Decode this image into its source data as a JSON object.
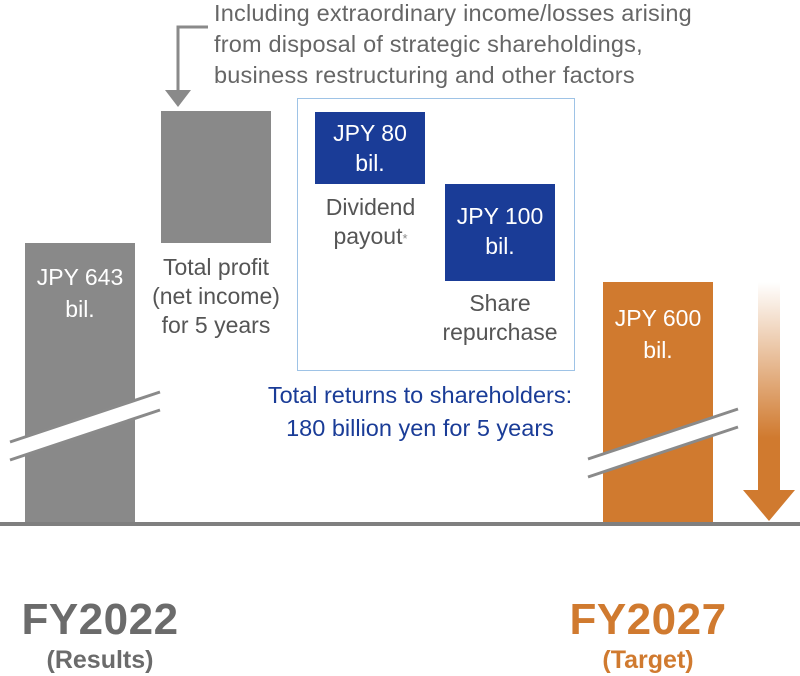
{
  "note": {
    "line1": "Including extraordinary income/losses arising",
    "line2": "from disposal of strategic shareholdings,",
    "line3": "business restructuring and other factors"
  },
  "fy2022_bar": {
    "line1": "JPY 643",
    "line2": "bil."
  },
  "profit_label": {
    "line1": "Total profit",
    "line2": "(net income)",
    "line3": "for 5 years"
  },
  "dividend": {
    "amount_line1": "JPY 80",
    "amount_line2": "bil.",
    "label_line1": "Dividend",
    "label_line2": "payout",
    "footnote_mark": "*"
  },
  "repurchase": {
    "amount_line1": "JPY 100",
    "amount_line2": "bil.",
    "label_line1": "Share",
    "label_line2": "repurchase"
  },
  "total_returns": {
    "line1": "Total returns to shareholders:",
    "line2": "180 billion yen for 5 years"
  },
  "fy2027_bar": {
    "line1": "JPY 600",
    "line2": "bil."
  },
  "years": {
    "left_main": "FY2022",
    "left_sub": "(Results)",
    "right_main": "FY2027",
    "right_sub": "(Target)"
  },
  "colors": {
    "gray_bar": "#898989",
    "orange": "#d07a2f",
    "navy": "#1a3c97",
    "light_blue_border": "#9ec3e6"
  }
}
